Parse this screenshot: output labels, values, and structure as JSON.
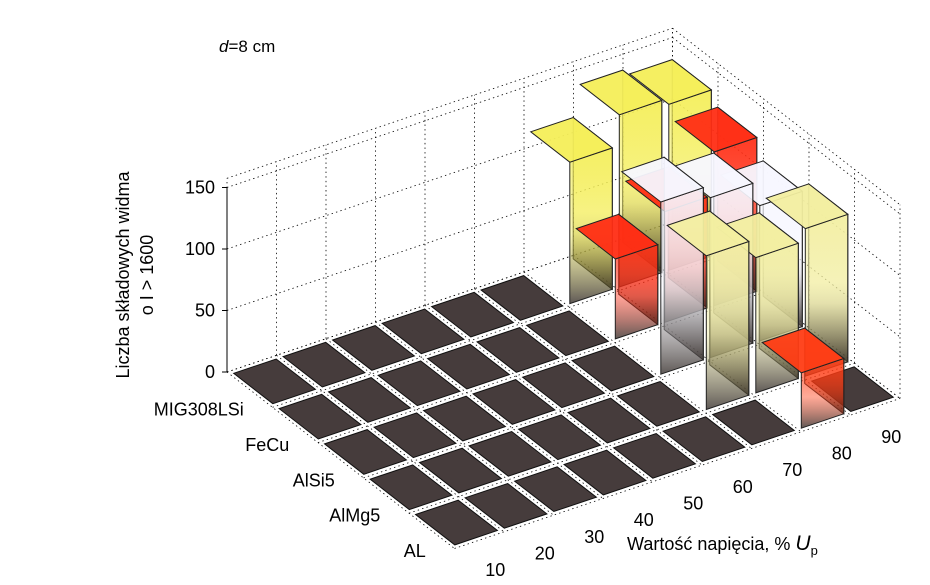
{
  "chart_data": {
    "type": "bar3d",
    "annotation_prefix": "d",
    "annotation_suffix": "=8 cm",
    "ylabel_line1": "Liczba składowych widma",
    "ylabel_line2": "o I > 1600",
    "xlabel_main": "Wartość napięcia, % ",
    "xlabel_var": "U",
    "xlabel_sub": "p",
    "x_ticks": [
      "10",
      "20",
      "30",
      "40",
      "50",
      "60",
      "70",
      "80",
      "90"
    ],
    "materials": [
      "AL",
      "AlMg5",
      "AlSi5",
      "FeCu",
      "MIG308LSi"
    ],
    "z_ticks": [
      "0",
      "50",
      "100",
      "150"
    ],
    "zlim": [
      0,
      150
    ],
    "grid": true,
    "series": [
      {
        "name": "AL",
        "values": [
          0,
          0,
          0,
          0,
          0,
          0,
          0,
          45,
          0
        ]
      },
      {
        "name": "AlMg5",
        "values": [
          0,
          0,
          0,
          0,
          0,
          0,
          125,
          110,
          120
        ]
      },
      {
        "name": "AlSi5",
        "values": [
          0,
          0,
          0,
          0,
          0,
          0,
          140,
          130,
          110
        ]
      },
      {
        "name": "FeCu",
        "values": [
          0,
          0,
          0,
          0,
          0,
          0,
          65,
          90,
          125
        ]
      },
      {
        "name": "MIG308LSi",
        "values": [
          0,
          0,
          0,
          0,
          0,
          0,
          115,
          140,
          135
        ]
      }
    ],
    "top_colors": {
      "AL": "#ff3c14",
      "AlMg5": "#f2eea0",
      "AlSi5": "#f7f7ff",
      "FeCu": "#ff2d14",
      "MIG308LSi": "#f4ee58"
    },
    "floor_color": "#463c3c"
  }
}
